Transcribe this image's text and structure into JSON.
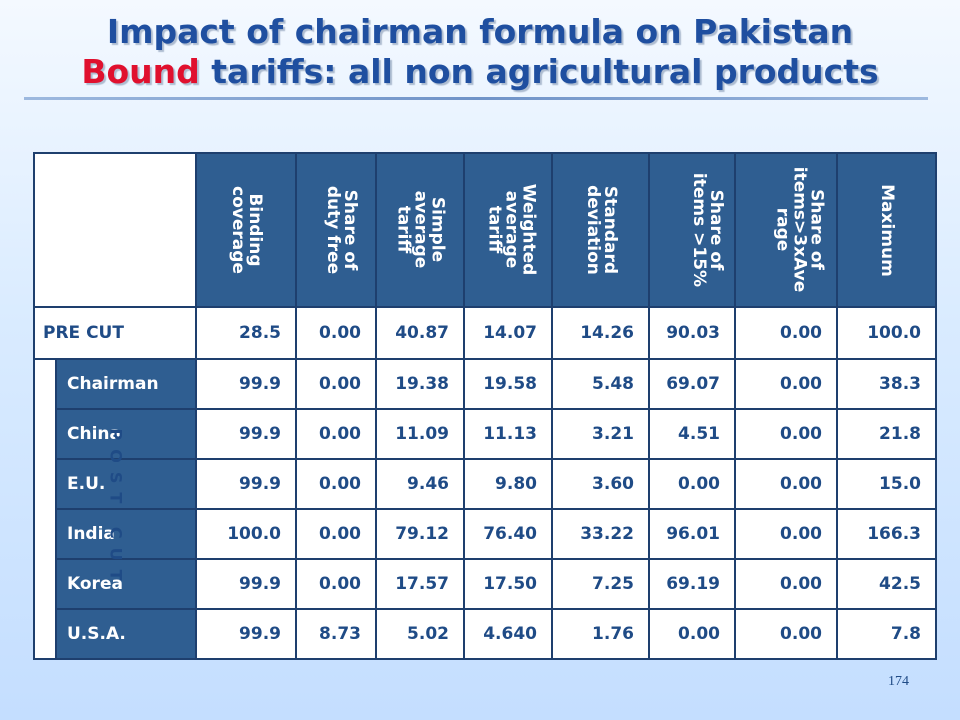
{
  "title": {
    "line1": "Impact of chairman formula on Pakistan",
    "line2_red": "Bound",
    "line2_rest": " tariffs: all non agricultural products"
  },
  "columns": [
    [
      "Binding",
      "coverage"
    ],
    [
      "Share of",
      "duty free"
    ],
    [
      "Simple",
      "average",
      "tariff"
    ],
    [
      "Weighted",
      "average",
      "tariff"
    ],
    [
      "Standard",
      "deviation"
    ],
    [
      "Share of",
      "items >15%"
    ],
    [
      "Share of",
      "items>3xAve",
      "rage"
    ],
    [
      "Maximum"
    ]
  ],
  "pre_cut": {
    "label": "PRE CUT",
    "values": [
      "28.5",
      "0.00",
      "40.87",
      "14.07",
      "14.26",
      "90.03",
      "0.00",
      "100.0"
    ]
  },
  "post_cut_label": "POST CUT",
  "post_cut_rows": [
    {
      "label": "Chairman",
      "values": [
        "99.9",
        "0.00",
        "19.38",
        "19.58",
        "5.48",
        "69.07",
        "0.00",
        "38.3"
      ]
    },
    {
      "label": "China",
      "values": [
        "99.9",
        "0.00",
        "11.09",
        "11.13",
        "3.21",
        "4.51",
        "0.00",
        "21.8"
      ]
    },
    {
      "label": "E.U.",
      "values": [
        "99.9",
        "0.00",
        "9.46",
        "9.80",
        "3.60",
        "0.00",
        "0.00",
        "15.0"
      ]
    },
    {
      "label": "India",
      "values": [
        "100.0",
        "0.00",
        "79.12",
        "76.40",
        "33.22",
        "96.01",
        "0.00",
        "166.3"
      ]
    },
    {
      "label": "Korea",
      "values": [
        "99.9",
        "0.00",
        "17.57",
        "17.50",
        "7.25",
        "69.19",
        "0.00",
        "42.5"
      ]
    },
    {
      "label": "U.S.A.",
      "values": [
        "99.9",
        "8.73",
        "5.02",
        "4.640",
        "1.76",
        "0.00",
        "0.00",
        "7.8"
      ]
    }
  ],
  "page_number": "174"
}
